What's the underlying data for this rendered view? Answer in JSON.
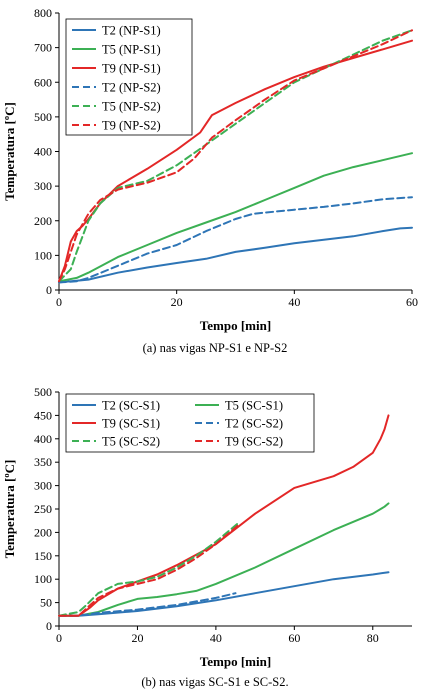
{
  "chart_data": [
    {
      "type": "line",
      "xlabel": "Tempo [min]",
      "ylabel": "Temperatura [ºC]",
      "xlim": [
        0,
        60
      ],
      "ylim": [
        0,
        800
      ],
      "xticks": [
        0,
        20,
        40,
        60
      ],
      "yticks": [
        0,
        100,
        200,
        300,
        400,
        500,
        600,
        700,
        800
      ],
      "grid": false,
      "legend_position": "top-left",
      "caption": "(a) nas vigas NP-S1 e NP-S2",
      "series": [
        {
          "name": "T2 (NP-S1)",
          "color": "#2e75b6",
          "dash": "solid",
          "points": [
            [
              0,
              22
            ],
            [
              5,
              30
            ],
            [
              10,
              50
            ],
            [
              15,
              65
            ],
            [
              20,
              78
            ],
            [
              25,
              90
            ],
            [
              30,
              110
            ],
            [
              35,
              122
            ],
            [
              40,
              135
            ],
            [
              45,
              145
            ],
            [
              50,
              155
            ],
            [
              55,
              170
            ],
            [
              58,
              178
            ],
            [
              60,
              180
            ]
          ]
        },
        {
          "name": "T5 (NP-S1)",
          "color": "#3cb054",
          "dash": "solid",
          "points": [
            [
              0,
              25
            ],
            [
              3,
              35
            ],
            [
              5,
              50
            ],
            [
              10,
              95
            ],
            [
              15,
              130
            ],
            [
              20,
              165
            ],
            [
              25,
              195
            ],
            [
              30,
              225
            ],
            [
              35,
              260
            ],
            [
              40,
              295
            ],
            [
              45,
              330
            ],
            [
              50,
              355
            ],
            [
              55,
              375
            ],
            [
              60,
              395
            ]
          ]
        },
        {
          "name": "T9 (NP-S1)",
          "color": "#e32727",
          "dash": "solid",
          "points": [
            [
              0,
              25
            ],
            [
              1,
              70
            ],
            [
              2,
              140
            ],
            [
              3,
              170
            ],
            [
              4,
              185
            ],
            [
              5,
              205
            ],
            [
              7,
              250
            ],
            [
              10,
              300
            ],
            [
              15,
              350
            ],
            [
              20,
              405
            ],
            [
              24,
              455
            ],
            [
              26,
              505
            ],
            [
              30,
              540
            ],
            [
              35,
              580
            ],
            [
              40,
              615
            ],
            [
              45,
              645
            ],
            [
              50,
              670
            ],
            [
              55,
              695
            ],
            [
              60,
              720
            ]
          ]
        },
        {
          "name": "T2 (NP-S2)",
          "color": "#2e75b6",
          "dash": "dashed",
          "points": [
            [
              0,
              22
            ],
            [
              3,
              25
            ],
            [
              5,
              35
            ],
            [
              10,
              70
            ],
            [
              15,
              105
            ],
            [
              20,
              130
            ],
            [
              25,
              170
            ],
            [
              30,
              205
            ],
            [
              33,
              220
            ],
            [
              40,
              232
            ],
            [
              45,
              240
            ],
            [
              50,
              250
            ],
            [
              55,
              262
            ],
            [
              60,
              268
            ]
          ]
        },
        {
          "name": "T5 (NP-S2)",
          "color": "#3cb054",
          "dash": "dashed",
          "points": [
            [
              0,
              25
            ],
            [
              2,
              60
            ],
            [
              3,
              110
            ],
            [
              5,
              200
            ],
            [
              7,
              250
            ],
            [
              10,
              295
            ],
            [
              15,
              315
            ],
            [
              20,
              360
            ],
            [
              25,
              420
            ],
            [
              30,
              480
            ],
            [
              35,
              540
            ],
            [
              40,
              600
            ],
            [
              45,
              640
            ],
            [
              50,
              680
            ],
            [
              55,
              720
            ],
            [
              60,
              750
            ]
          ]
        },
        {
          "name": "T9 (NP-S2)",
          "color": "#e32727",
          "dash": "dashed",
          "points": [
            [
              0,
              25
            ],
            [
              1,
              60
            ],
            [
              2,
              110
            ],
            [
              3,
              160
            ],
            [
              5,
              220
            ],
            [
              7,
              260
            ],
            [
              10,
              290
            ],
            [
              15,
              310
            ],
            [
              20,
              340
            ],
            [
              23,
              380
            ],
            [
              26,
              440
            ],
            [
              30,
              490
            ],
            [
              35,
              550
            ],
            [
              40,
              605
            ],
            [
              45,
              640
            ],
            [
              50,
              675
            ],
            [
              55,
              710
            ],
            [
              60,
              750
            ]
          ]
        }
      ]
    },
    {
      "type": "line",
      "xlabel": "Tempo [min]",
      "ylabel": "Temperatura [ºC]",
      "xlim": [
        0,
        90
      ],
      "ylim": [
        0,
        500
      ],
      "xticks": [
        0,
        20,
        40,
        60,
        80
      ],
      "yticks": [
        0,
        50,
        100,
        150,
        200,
        250,
        300,
        350,
        400,
        450,
        500
      ],
      "grid": false,
      "legend_position": "top",
      "caption": "(b) nas vigas SC-S1 e SC-S2.",
      "series": [
        {
          "name": "T2 (SC-S1)",
          "color": "#2e75b6",
          "dash": "solid",
          "points": [
            [
              0,
              22
            ],
            [
              5,
              22
            ],
            [
              10,
              25
            ],
            [
              20,
              32
            ],
            [
              30,
              42
            ],
            [
              40,
              55
            ],
            [
              50,
              70
            ],
            [
              60,
              85
            ],
            [
              70,
              100
            ],
            [
              80,
              110
            ],
            [
              84,
              115
            ]
          ]
        },
        {
          "name": "T5 (SC-S1)",
          "color": "#3cb054",
          "dash": "solid",
          "points": [
            [
              0,
              22
            ],
            [
              5,
              22
            ],
            [
              10,
              30
            ],
            [
              15,
              45
            ],
            [
              20,
              58
            ],
            [
              25,
              62
            ],
            [
              30,
              68
            ],
            [
              35,
              75
            ],
            [
              40,
              90
            ],
            [
              50,
              125
            ],
            [
              60,
              165
            ],
            [
              70,
              205
            ],
            [
              80,
              240
            ],
            [
              83,
              255
            ],
            [
              84,
              262
            ]
          ]
        },
        {
          "name": "T9 (SC-S1)",
          "color": "#e32727",
          "dash": "solid",
          "points": [
            [
              0,
              22
            ],
            [
              5,
              22
            ],
            [
              8,
              40
            ],
            [
              10,
              55
            ],
            [
              15,
              80
            ],
            [
              20,
              95
            ],
            [
              25,
              110
            ],
            [
              30,
              130
            ],
            [
              40,
              175
            ],
            [
              50,
              240
            ],
            [
              60,
              295
            ],
            [
              70,
              320
            ],
            [
              75,
              340
            ],
            [
              80,
              370
            ],
            [
              82,
              400
            ],
            [
              83,
              420
            ],
            [
              84,
              450
            ]
          ]
        },
        {
          "name": "T2 (SC-S2)",
          "color": "#2e75b6",
          "dash": "dashed",
          "points": [
            [
              0,
              22
            ],
            [
              5,
              22
            ],
            [
              10,
              28
            ],
            [
              20,
              35
            ],
            [
              30,
              45
            ],
            [
              40,
              60
            ],
            [
              45,
              70
            ]
          ]
        },
        {
          "name": "T5 (SC-S2)",
          "color": "#3cb054",
          "dash": "dashed",
          "points": [
            [
              0,
              22
            ],
            [
              5,
              30
            ],
            [
              7,
              45
            ],
            [
              10,
              70
            ],
            [
              15,
              90
            ],
            [
              20,
              95
            ],
            [
              25,
              105
            ],
            [
              30,
              125
            ],
            [
              35,
              150
            ],
            [
              40,
              180
            ],
            [
              45,
              215
            ],
            [
              46,
              222
            ]
          ]
        },
        {
          "name": "T9 (SC-S2)",
          "color": "#e32727",
          "dash": "dashed",
          "points": [
            [
              0,
              22
            ],
            [
              5,
              22
            ],
            [
              8,
              45
            ],
            [
              10,
              60
            ],
            [
              15,
              80
            ],
            [
              20,
              90
            ],
            [
              25,
              100
            ],
            [
              30,
              120
            ],
            [
              35,
              145
            ],
            [
              40,
              175
            ],
            [
              45,
              210
            ],
            [
              46,
              218
            ]
          ]
        }
      ]
    }
  ]
}
